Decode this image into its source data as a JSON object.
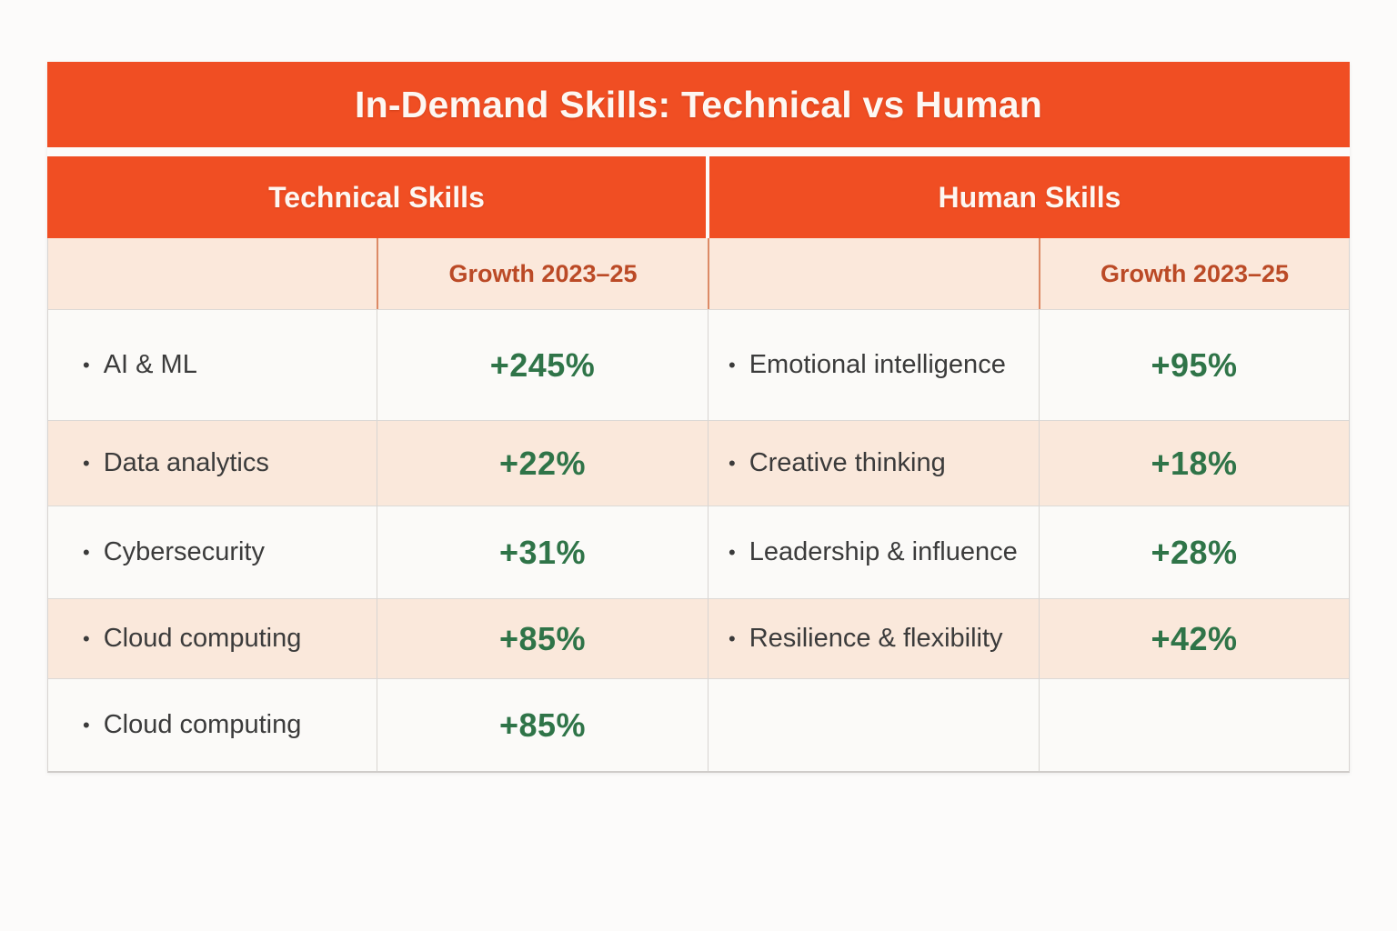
{
  "ui": {
    "bullet": "•"
  },
  "colors": {
    "header_orange": "#F04E23",
    "subheader_background": "#FBE8DB",
    "growth_header_text": "#BB4A26",
    "value_green": "#2F7448",
    "skill_text": "#3B3B3B",
    "row_peach": "#FAE8DB",
    "row_white": "#FBFAF8"
  },
  "chart_data": {
    "type": "table",
    "title": "In-Demand Skills: Technical vs Human",
    "sections": [
      {
        "name": "Technical Skills",
        "growth_label": "Growth 2023–25",
        "rows": [
          {
            "skill": "AI & ML",
            "growth": "+245%",
            "growth_value": 245
          },
          {
            "skill": "Data analytics",
            "growth": "+22%",
            "growth_value": 22
          },
          {
            "skill": "Cybersecurity",
            "growth": "+31%",
            "growth_value": 31
          },
          {
            "skill": "Cloud computing",
            "growth": "+85%",
            "growth_value": 85
          },
          {
            "skill": "Cloud computing",
            "growth": "+85%",
            "growth_value": 85
          }
        ]
      },
      {
        "name": "Human Skills",
        "growth_label": "Growth 2023–25",
        "rows": [
          {
            "skill": "Emotional intelligence",
            "growth": "+95%",
            "growth_value": 95
          },
          {
            "skill": "Creative thinking",
            "growth": "+18%",
            "growth_value": 18
          },
          {
            "skill": "Leadership & influence",
            "growth": "+28%",
            "growth_value": 28
          },
          {
            "skill": "Resilience & flexibility",
            "growth": "+42%",
            "growth_value": 42
          },
          {
            "skill": "",
            "growth": ""
          }
        ]
      }
    ]
  }
}
